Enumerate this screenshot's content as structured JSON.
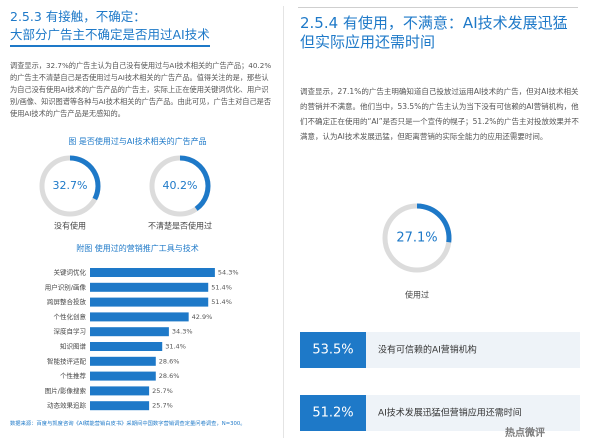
{
  "left": {
    "heading": [
      "2.5.3 有接触，不确定：",
      "大部分广告主不确定是否用过AI技术"
    ],
    "paragraph": "调查显示，32.7%的广告主认为自己没有使用过与AI技术相关的广告产品；40.2%的广告主不清楚自己是否使用过与AI技术相关的广告产品。值得关注的是，那些认为自己没有使用AI技术的广告产品的广告主，实际上正在使用关键词优化、用户识别/画像、知识图谱等各种与AI技术相关的广告产品。由此可见，广告主对自己是否使用AI技术的广告产品是无感知的。",
    "donut_chart": {
      "title": "图 是否使用过与AI技术相关的广告产品",
      "items": [
        {
          "label": "没有使用",
          "value": 32.7,
          "value_label": "32.7%"
        },
        {
          "label": "不清楚是否使用过",
          "value": 40.2,
          "value_label": "40.2%"
        }
      ]
    },
    "bar_chart": {
      "title": "附图 使用过的营销推广工具与技术",
      "categories": [
        "关键词优化",
        "用户识别/画像",
        "跨屏整合投放",
        "个性化创意",
        "深度自学习",
        "知识图谱",
        "智能技评适配",
        "个性推荐",
        "图片/影像搜索",
        "动态效果追踪"
      ],
      "values": [
        54.3,
        51.4,
        51.4,
        42.9,
        34.3,
        31.4,
        28.6,
        28.6,
        25.7,
        25.7
      ],
      "value_labels": [
        "54.3%",
        "51.4%",
        "51.4%",
        "42.9%",
        "34.3%",
        "31.4%",
        "28.6%",
        "28.6%",
        "25.7%",
        "25.7%"
      ]
    },
    "source": "数据来源：百度与凯度咨询《AI赋能营销白皮书》采期间中国数字营销调查定量问卷调查，N=300。"
  },
  "right": {
    "heading": "2.5.4 有使用，不满意：AI技术发展迅猛但实际应用还需时间",
    "paragraph": "调查显示，27.1%的广告主明确知道自己投放过运用AI技术的广告，但对AI技术相关的营销并不满意。他们当中，53.5%的广告主认为当下没有可信赖的AI营销机构，他们不确定正在使用的“AI”是否只是一个宣传的幌子；51.2%的广告主对投放效果并不满意，认为AI技术发展迅猛，但距离营销的实际全能力的应用还需要时间。",
    "donut": {
      "label": "使用过",
      "value": 27.1,
      "value_label": "27.1%"
    },
    "stats": [
      {
        "value": 53.5,
        "value_label": "53.5%",
        "text": "没有可信赖的AI营销机构"
      },
      {
        "value": 51.2,
        "value_label": "51.2%",
        "text": "AI技术发展迅猛但营销应用还需时间"
      }
    ]
  },
  "watermark": "热点微评"
}
